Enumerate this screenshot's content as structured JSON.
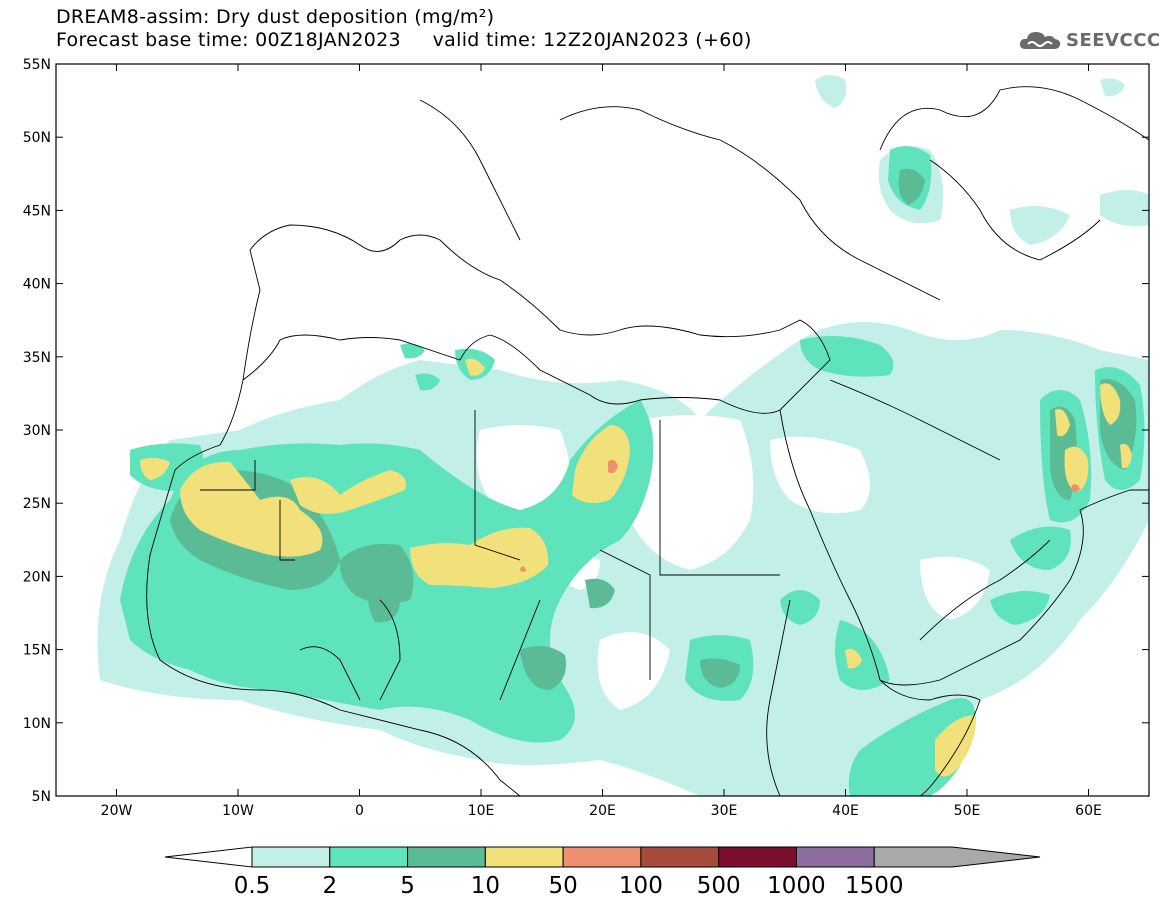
{
  "header": {
    "title_line1": "DREAM8-assim: Dry dust deposition (mg/m²)",
    "title_line2": "Forecast base time: 00Z18JAN2023     valid time: 12Z20JAN2023 (+60)"
  },
  "logo": {
    "text": "SEEVCCC",
    "icon": "cloud-icon"
  },
  "map": {
    "lat_labels": [
      "55N",
      "50N",
      "45N",
      "40N",
      "35N",
      "30N",
      "25N",
      "20N",
      "15N",
      "10N",
      "5N"
    ],
    "lon_labels": [
      "20W",
      "10W",
      "0",
      "10E",
      "20E",
      "30E",
      "40E",
      "50E",
      "60E"
    ]
  },
  "legend": {
    "values": [
      "0.5",
      "2",
      "5",
      "10",
      "50",
      "100",
      "500",
      "1000",
      "1500"
    ],
    "colors": [
      "#c2f0e8",
      "#5ee3bd",
      "#5abb94",
      "#f2e17a",
      "#ec9070",
      "#a84b3f",
      "#7b0e2c",
      "#8c6d9e",
      "#a9a9a9"
    ],
    "under_color": "#ffffff"
  }
}
